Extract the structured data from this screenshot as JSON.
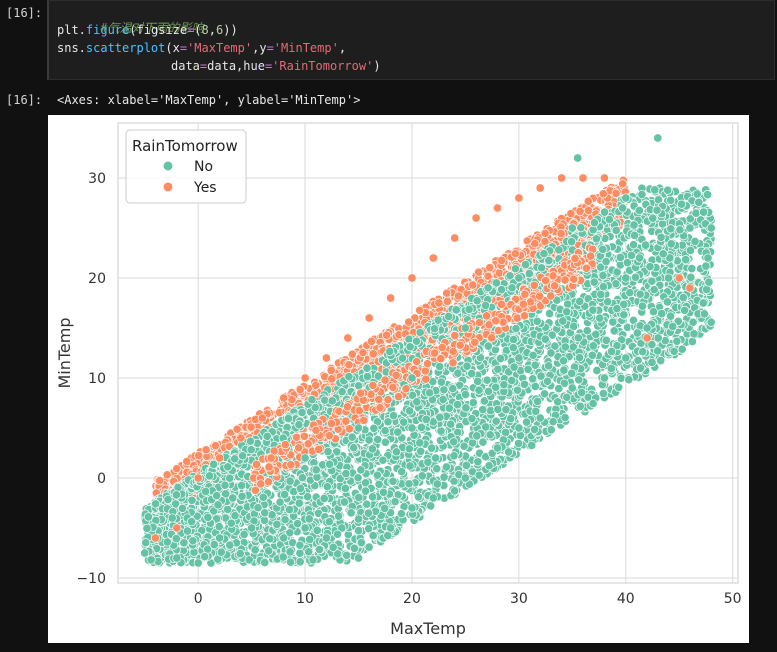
{
  "cell": {
    "in_prompt": "[16]:",
    "out_prompt": "[16]:",
    "code": {
      "line1_comment": "#气温对下雨的影响",
      "line2": {
        "pre": "plt.",
        "func": "figure",
        "mid": "(figsize",
        "eq": "=",
        "paren": "(",
        "n1": "8",
        "comma": ",",
        "n2": "6",
        "end": "))"
      },
      "line3": {
        "pre": "sns.",
        "func": "scatterplot",
        "a": "(x",
        "eq1": "=",
        "s1": "'MaxTemp'",
        "b": ",y",
        "eq2": "=",
        "s2": "'MinTemp'",
        "c": ","
      },
      "line4": {
        "a": "data",
        "eq1": "=",
        "b": "data,hue",
        "eq2": "=",
        "s": "'RainTomorrow'",
        "c": ")"
      }
    },
    "output_text": "<Axes: xlabel='MaxTemp', ylabel='MinTemp'>"
  },
  "chart_data": {
    "type": "scatter",
    "title": "",
    "xlabel": "MaxTemp",
    "ylabel": "MinTemp",
    "xlim": [
      -7.5,
      50.5
    ],
    "ylim": [
      -10.5,
      35.5
    ],
    "xticks": [
      0,
      10,
      20,
      30,
      40,
      50
    ],
    "yticks": [
      -10,
      0,
      10,
      20,
      30
    ],
    "grid": true,
    "legend": {
      "title": "RainTomorrow",
      "placement": "top-left",
      "entries": [
        "No",
        "Yes"
      ]
    },
    "colors": {
      "No": "#66c2a5",
      "Yes": "#fc8d62"
    },
    "series": [
      {
        "name": "No",
        "x": [
          -5,
          -2,
          0,
          2,
          5,
          8,
          10,
          12,
          15,
          18,
          20,
          22,
          25,
          28,
          30,
          32,
          35,
          38,
          40,
          42,
          44,
          46,
          48,
          15,
          20,
          25,
          30,
          35,
          40,
          10,
          20,
          30,
          40,
          43,
          35.5
        ],
        "y": [
          -7.5,
          -8,
          -8.5,
          -6,
          -5,
          -6,
          -5,
          -6,
          -8,
          -5,
          -3,
          -2,
          0,
          3,
          5,
          6,
          9,
          10,
          12,
          15,
          20,
          25,
          25,
          5,
          10,
          15,
          20,
          25,
          28,
          2,
          5,
          12,
          20,
          34,
          32
        ]
      },
      {
        "name": "Yes",
        "x": [
          -4,
          -2,
          0,
          2,
          4,
          6,
          8,
          10,
          12,
          14,
          16,
          18,
          20,
          22,
          24,
          26,
          28,
          30,
          32,
          34,
          36,
          38,
          42,
          45,
          46
        ],
        "y": [
          -6,
          -5,
          0,
          2,
          4,
          6,
          8,
          10,
          12,
          14,
          16,
          18,
          20,
          22,
          24,
          26,
          27,
          28,
          29,
          30,
          30,
          30,
          14,
          20,
          19
        ]
      }
    ]
  }
}
